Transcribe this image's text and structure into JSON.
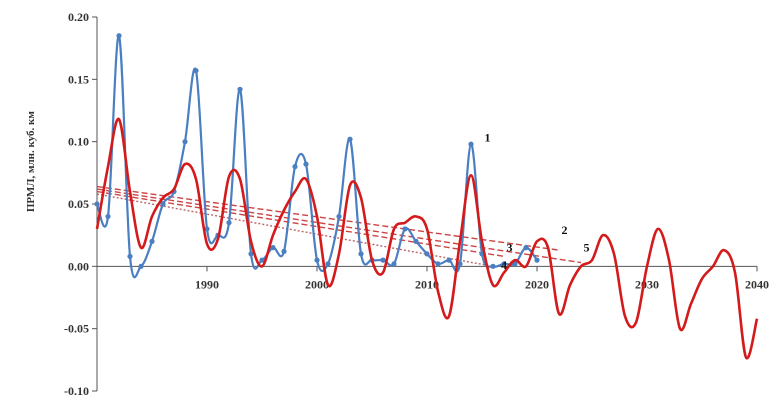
{
  "chart_data": {
    "type": "line",
    "ylabel": "ПРМЛ, млн. куб. км",
    "xlim": [
      1980,
      2040
    ],
    "ylim": [
      -0.1,
      0.2
    ],
    "x_ticks": [
      1990,
      2000,
      2010,
      2020,
      2030,
      2040
    ],
    "y_ticks": [
      -0.1,
      -0.05,
      0.0,
      0.05,
      0.1,
      0.15,
      0.2
    ],
    "y_tick_labels": [
      "-0.10",
      "-0.05",
      "0.00",
      "0.05",
      "0.10",
      "0.15",
      "0.20"
    ],
    "x_tick_labels": [
      "1990",
      "2000",
      "2010",
      "2020",
      "2030",
      "2040"
    ],
    "grid": false,
    "legend": "none",
    "colors": {
      "observed": "#4a7fc1",
      "model": "#d41a1a",
      "trend": "#cc4444"
    },
    "series": [
      {
        "label": "1",
        "style": "line-with-markers",
        "color": "#4a7fc1",
        "x": [
          1980,
          1981,
          1982,
          1983,
          1984,
          1985,
          1986,
          1987,
          1988,
          1989,
          1990,
          1991,
          1992,
          1993,
          1994,
          1995,
          1996,
          1997,
          1998,
          1999,
          2000,
          2001,
          2002,
          2003,
          2004,
          2005,
          2006,
          2007,
          2008,
          2009,
          2010,
          2011,
          2012,
          2013,
          2014,
          2015,
          2016,
          2017,
          2018,
          2019,
          2020
        ],
        "y": [
          0.05,
          0.04,
          0.185,
          0.008,
          0.0,
          0.02,
          0.05,
          0.06,
          0.1,
          0.157,
          0.03,
          0.025,
          0.035,
          0.142,
          0.01,
          0.005,
          0.015,
          0.012,
          0.08,
          0.082,
          0.005,
          0.002,
          0.04,
          0.102,
          0.01,
          0.005,
          0.005,
          0.002,
          0.03,
          0.02,
          0.01,
          0.002,
          0.005,
          0.002,
          0.098,
          0.01,
          0.0,
          0.002,
          0.002,
          0.015,
          0.005
        ]
      },
      {
        "label": "",
        "style": "line",
        "color": "#d41a1a",
        "x": [
          1980,
          1981,
          1982,
          1983,
          1984,
          1985,
          1986,
          1987,
          1988,
          1989,
          1990,
          1991,
          1992,
          1993,
          1994,
          1995,
          1996,
          1997,
          1998,
          1999,
          2000,
          2001,
          2002,
          2003,
          2004,
          2005,
          2006,
          2007,
          2008,
          2009,
          2010,
          2011,
          2012,
          2013,
          2014,
          2015,
          2016,
          2017,
          2018,
          2019,
          2020,
          2021,
          2022,
          2023,
          2024,
          2025,
          2026,
          2027,
          2028,
          2029,
          2030,
          2031,
          2032,
          2033,
          2034,
          2035,
          2036,
          2037,
          2038,
          2039,
          2040
        ],
        "y": [
          0.03,
          0.08,
          0.118,
          0.06,
          0.015,
          0.04,
          0.055,
          0.062,
          0.082,
          0.07,
          0.018,
          0.022,
          0.072,
          0.07,
          0.02,
          0.0,
          0.025,
          0.045,
          0.06,
          0.07,
          0.04,
          -0.015,
          0.01,
          0.065,
          0.055,
          0.005,
          -0.005,
          0.03,
          0.035,
          0.04,
          0.03,
          -0.02,
          -0.04,
          0.02,
          0.073,
          0.02,
          -0.015,
          -0.005,
          0.005,
          0.0,
          0.02,
          0.015,
          -0.038,
          -0.015,
          0.0,
          0.005,
          0.025,
          0.01,
          -0.04,
          -0.045,
          0.0,
          0.03,
          0.005,
          -0.05,
          -0.03,
          -0.01,
          0.0,
          0.013,
          -0.005,
          -0.073,
          -0.042
        ]
      },
      {
        "label": "2",
        "style": "dashed",
        "color": "#cc4444",
        "x": [
          1980,
          2022
        ],
        "y": [
          0.064,
          0.013
        ]
      },
      {
        "label": "3",
        "style": "dashed",
        "color": "#cc4444",
        "x": [
          1980,
          2017
        ],
        "y": [
          0.06,
          0.008
        ]
      },
      {
        "label": "4",
        "style": "dotted",
        "color": "#bb6666",
        "x": [
          1980,
          2016
        ],
        "y": [
          0.058,
          0.0
        ]
      },
      {
        "label": "5",
        "style": "dashed",
        "color": "#cc4444",
        "x": [
          1980,
          2024
        ],
        "y": [
          0.062,
          0.003
        ]
      }
    ],
    "annotations": [
      {
        "text": "1",
        "x": 2015.5,
        "y": 0.1
      },
      {
        "text": "2",
        "x": 2022.5,
        "y": 0.026
      },
      {
        "text": "3",
        "x": 2017.5,
        "y": 0.012
      },
      {
        "text": "4",
        "x": 2017.0,
        "y": -0.002
      },
      {
        "text": "5",
        "x": 2024.5,
        "y": 0.012
      }
    ]
  }
}
